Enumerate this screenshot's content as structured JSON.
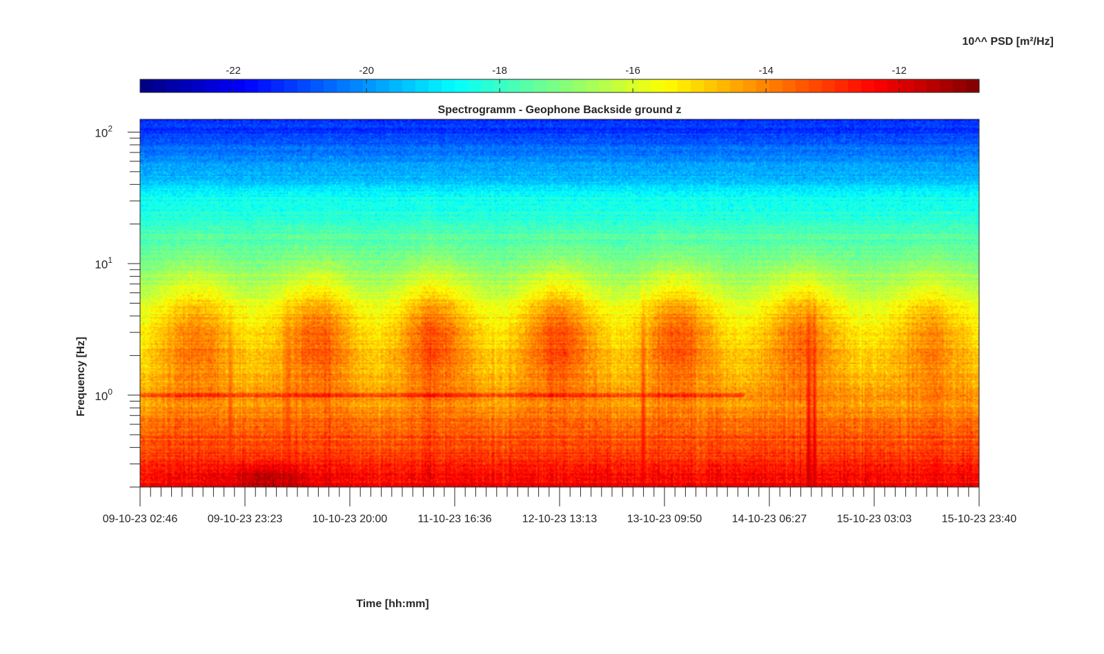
{
  "chart_data": {
    "type": "heatmap",
    "title": "Spectrogramm - Geophone Backside ground z",
    "xlabel": "Time [hh:mm]",
    "ylabel": "Frequency [Hz]",
    "x_ticks": [
      "09-10-23 02:46",
      "09-10-23 23:23",
      "10-10-23 20:00",
      "11-10-23 16:36",
      "12-10-23 13:13",
      "13-10-23 09:50",
      "14-10-23 06:27",
      "15-10-23 03:03",
      "15-10-23 23:40"
    ],
    "xlim": [
      "09-10-23 02:46",
      "15-10-23 23:40"
    ],
    "y_scale": "log",
    "ylim": [
      0.2,
      125
    ],
    "y_ticks": [
      {
        "value": 1,
        "base": "10",
        "exp": "0"
      },
      {
        "value": 10,
        "base": "10",
        "exp": "1"
      },
      {
        "value": 100,
        "base": "10",
        "exp": "2"
      }
    ],
    "colorbar": {
      "label": "10^^ PSD [m²/Hz]",
      "range": [
        -23.4,
        -10.8
      ],
      "ticks": [
        "-22",
        "-20",
        "-18",
        "-16",
        "-14",
        "-12"
      ],
      "tick_values": [
        -22,
        -20,
        -18,
        -16,
        -14,
        -12
      ],
      "colormap": "jet",
      "location": "top"
    },
    "grid": false,
    "features": [
      {
        "kind": "trend",
        "freq_hz": 100,
        "psd_exp": -21.2
      },
      {
        "kind": "trend",
        "freq_hz": 30,
        "psd_exp": -18.5
      },
      {
        "kind": "trend",
        "freq_hz": 10,
        "psd_exp": -17.2
      },
      {
        "kind": "trend",
        "freq_hz": 3,
        "psd_exp": -15.5
      },
      {
        "kind": "trend",
        "freq_hz": 1,
        "psd_exp": -14.5
      },
      {
        "kind": "trend",
        "freq_hz": 0.5,
        "psd_exp": -13.5
      },
      {
        "kind": "trend",
        "freq_hz": 0.25,
        "psd_exp": -12.4
      },
      {
        "kind": "daytime_activity",
        "center": "09-10-23 14:00",
        "freq_hz": 3,
        "psd_exp": -14.0
      },
      {
        "kind": "daytime_activity",
        "center": "10-10-23 13:30",
        "freq_hz": 3,
        "psd_exp": -13.6
      },
      {
        "kind": "daytime_activity",
        "center": "11-10-23 12:30",
        "freq_hz": 3,
        "psd_exp": -13.5
      },
      {
        "kind": "daytime_activity",
        "center": "12-10-23 13:00",
        "freq_hz": 3,
        "psd_exp": -13.4
      },
      {
        "kind": "daytime_activity",
        "center": "13-10-23 12:30",
        "freq_hz": 3,
        "psd_exp": -13.5
      },
      {
        "kind": "daytime_activity",
        "center": "14-10-23 13:00",
        "freq_hz": 3,
        "psd_exp": -13.8
      },
      {
        "kind": "daytime_activity",
        "center": "15-10-23 14:00",
        "freq_hz": 3,
        "psd_exp": -14.2
      },
      {
        "kind": "spike",
        "time": "09-10-23 20:30",
        "psd_exp": -12.8
      },
      {
        "kind": "spike",
        "time": "10-10-23 07:40",
        "psd_exp": -13.0
      },
      {
        "kind": "spike",
        "time": "13-10-23 05:40",
        "psd_exp": -12.4
      },
      {
        "kind": "spike",
        "time": "14-10-23 14:10",
        "psd_exp": -11.6
      },
      {
        "kind": "spike",
        "time": "14-10-23 15:20",
        "psd_exp": -11.8
      }
    ]
  }
}
